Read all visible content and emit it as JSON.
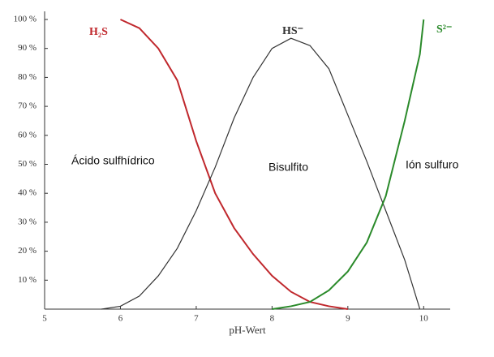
{
  "chart_data": {
    "type": "line",
    "x_label": "pH-Wert",
    "x": [
      5.75,
      6,
      6.25,
      6.5,
      6.75,
      7,
      7.25,
      7.5,
      7.75,
      8,
      8.25,
      8.5,
      8.75,
      9,
      9.25,
      9.5,
      9.75,
      9.95,
      10
    ],
    "series": [
      {
        "name": "H₂S",
        "color": "#c0282d",
        "values": [
          null,
          100,
          97,
          90,
          79,
          58,
          40,
          28,
          19,
          11.5,
          6,
          2.5,
          1,
          0,
          null,
          null,
          null,
          null,
          null
        ]
      },
      {
        "name": "HS⁻",
        "color": "#333333",
        "values": [
          0,
          1,
          4.5,
          11.5,
          21,
          34,
          49,
          66,
          80,
          90,
          93.5,
          91,
          83,
          67,
          51,
          34,
          17,
          0,
          null
        ]
      },
      {
        "name": "S²⁻",
        "color": "#2a8a2a",
        "values": [
          null,
          null,
          null,
          null,
          null,
          null,
          null,
          null,
          null,
          0,
          1,
          2.5,
          6.5,
          13,
          23,
          39,
          65,
          88,
          100
        ]
      }
    ],
    "annotations": [
      "Ácido sulfhídrico",
      "Bisulfito",
      "Ión sulfuro"
    ],
    "xlim": [
      5,
      10.35
    ],
    "ylim": [
      0,
      100
    ],
    "xticks": [
      5,
      6,
      7,
      8,
      9,
      10
    ],
    "yticks": [
      {
        "value": 10,
        "label": "10 %"
      },
      {
        "value": 20,
        "label": "20 %"
      },
      {
        "value": 30,
        "label": "30 %"
      },
      {
        "value": 40,
        "label": "40 %"
      },
      {
        "value": 50,
        "label": "50 %"
      },
      {
        "value": 60,
        "label": "60 %"
      },
      {
        "value": 70,
        "label": "70 %"
      },
      {
        "value": 80,
        "label": "80 %"
      },
      {
        "value": 90,
        "label": "90 %"
      },
      {
        "value": 100,
        "label": "100 %"
      }
    ]
  }
}
